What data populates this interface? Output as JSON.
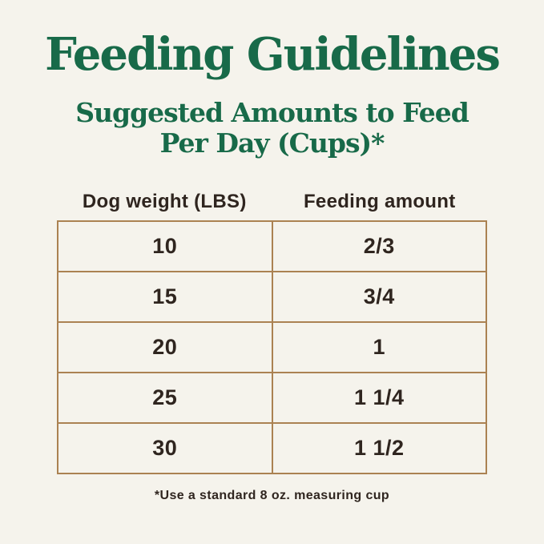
{
  "page": {
    "title": "Feeding Guidelines",
    "subtitle_line1": "Suggested Amounts to Feed",
    "subtitle_line2": "Per Day (Cups)*",
    "footnote": "*Use a standard 8 oz. measuring cup"
  },
  "table": {
    "columns": [
      "Dog weight (LBS)",
      "Feeding amount"
    ],
    "rows": [
      {
        "weight": "10",
        "amount": "2/3"
      },
      {
        "weight": "15",
        "amount": "3/4"
      },
      {
        "weight": "20",
        "amount": "1"
      },
      {
        "weight": "25",
        "amount": "1 1/4"
      },
      {
        "weight": "30",
        "amount": "1 1/2"
      }
    ]
  },
  "colors": {
    "background": "#f5f3ec",
    "heading_green": "#186a49",
    "table_border": "#ab8252",
    "text_dark": "#2f251f"
  },
  "chart_data": {
    "type": "table",
    "title": "Feeding Guidelines",
    "subtitle": "Suggested Amounts to Feed Per Day (Cups)*",
    "columns": [
      "Dog weight (LBS)",
      "Feeding amount"
    ],
    "x": [
      10,
      15,
      20,
      25,
      30
    ],
    "xlabel": "Dog weight (LBS)",
    "ylabel": "Feeding amount (cups)",
    "values_cups": [
      0.667,
      0.75,
      1,
      1.25,
      1.5
    ],
    "values_display": [
      "2/3",
      "3/4",
      "1",
      "1 1/4",
      "1 1/2"
    ],
    "annotations": [
      "*Use a standard 8 oz. measuring cup"
    ],
    "legend": "none",
    "grid": "table borders"
  }
}
